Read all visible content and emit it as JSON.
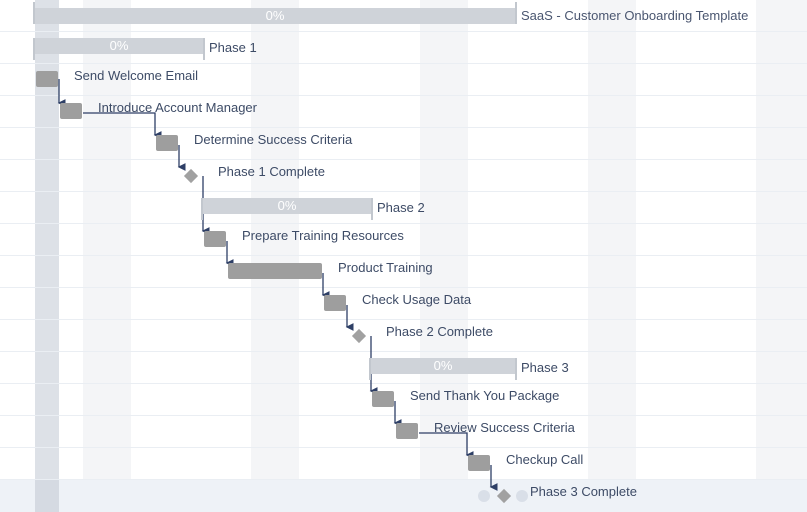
{
  "project": {
    "title": "SaaS - Customer Onboarding Template",
    "progress": "0%"
  },
  "phases": [
    {
      "name": "Phase 1",
      "progress": "0%"
    },
    {
      "name": "Phase 2",
      "progress": "0%"
    },
    {
      "name": "Phase 3",
      "progress": "0%"
    }
  ],
  "tasks": [
    {
      "name": "Send Welcome Email"
    },
    {
      "name": "Introduce Account Manager"
    },
    {
      "name": "Determine Success Criteria"
    },
    {
      "name": "Phase 1 Complete"
    },
    {
      "name": "Prepare Training Resources"
    },
    {
      "name": "Product Training"
    },
    {
      "name": "Check Usage Data"
    },
    {
      "name": "Phase 2 Complete"
    },
    {
      "name": "Send Thank You Package"
    },
    {
      "name": "Review Success Criteria"
    },
    {
      "name": "Checkup Call"
    },
    {
      "name": "Phase 3 Complete"
    }
  ],
  "colors": {
    "summary_bar": "#cfd3d9",
    "task_bar": "#9e9e9e",
    "milestone": "#a1a1a1",
    "dependency_arrow": "#2e3f66",
    "label_text": "#3d4b66"
  }
}
